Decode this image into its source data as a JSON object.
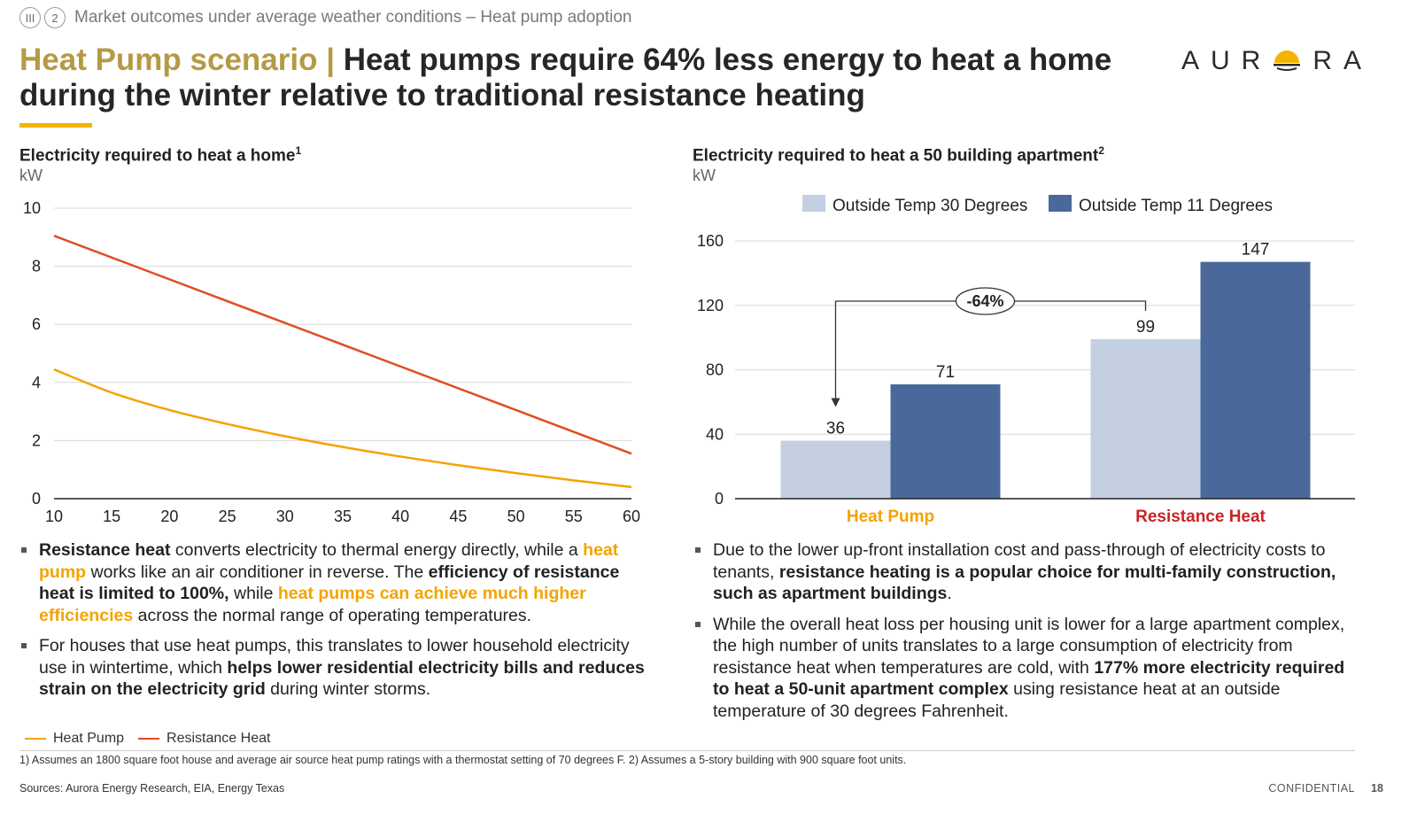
{
  "header": {
    "section_roman": "III",
    "section_number": "2",
    "breadcrumb": "Market outcomes under average weather conditions – Heat pump adoption",
    "title_accent": "Heat Pump scenario |",
    "title_main": "Heat pumps require 64% less energy to heat a home during the winter relative to traditional resistance heating",
    "logo_text_left": "AUR",
    "logo_text_right": "RA",
    "accent_color": "#b59a45",
    "underline_color": "#f4b400"
  },
  "left_panel": {
    "title": "Electricity required to heat a home",
    "title_sup": "1",
    "unit": "kW",
    "legend": [
      {
        "label": "Heat Pump",
        "color": "#f4a300"
      },
      {
        "label": "Resistance Heat",
        "color": "#e04e1f"
      }
    ],
    "bullets": [
      {
        "parts": [
          {
            "t": "Resistance heat",
            "s": "b"
          },
          {
            "t": " converts electricity to thermal energy directly, while a ",
            "s": ""
          },
          {
            "t": "heat pump",
            "s": "o"
          },
          {
            "t": " works like an air conditioner in reverse. The ",
            "s": ""
          },
          {
            "t": "efficiency of resistance heat is limited to 100%,",
            "s": "b"
          },
          {
            "t": " while ",
            "s": ""
          },
          {
            "t": "heat pumps can achieve much higher efficiencies",
            "s": "o"
          },
          {
            "t": " across the normal range of operating temperatures.",
            "s": ""
          }
        ]
      },
      {
        "parts": [
          {
            "t": "For houses that use heat pumps, this translates to lower household electricity use in wintertime, which ",
            "s": ""
          },
          {
            "t": "helps lower residential electricity bills and reduces strain on the electricity grid",
            "s": "b"
          },
          {
            "t": " during winter storms.",
            "s": ""
          }
        ]
      }
    ]
  },
  "right_panel": {
    "title": "Electricity required to heat a 50 building apartment",
    "title_sup": "2",
    "unit": "kW",
    "bullets": [
      {
        "parts": [
          {
            "t": "Due to the lower up-front installation cost and pass-through of electricity costs to tenants, ",
            "s": ""
          },
          {
            "t": "resistance heating is a popular choice for multi-family construction, such as apartment buildings",
            "s": "b"
          },
          {
            "t": ".",
            "s": ""
          }
        ]
      },
      {
        "parts": [
          {
            "t": "While the overall heat loss per housing unit is lower for a large apartment complex, the high number of units translates to a large consumption of electricity from resistance heat when temperatures are cold, with ",
            "s": ""
          },
          {
            "t": "177% more electricity required to heat a 50-unit apartment complex",
            "s": "b"
          },
          {
            "t": " using resistance heat at an outside temperature of 30 degrees Fahrenheit.",
            "s": ""
          }
        ]
      }
    ]
  },
  "chart_data": [
    {
      "type": "line",
      "title": "Electricity required to heat a home",
      "ylabel": "kW",
      "xlabel": "",
      "xlim": [
        10,
        60
      ],
      "ylim": [
        0,
        10
      ],
      "x_ticks": [
        10,
        15,
        20,
        25,
        30,
        35,
        40,
        45,
        50,
        55,
        60
      ],
      "y_ticks": [
        0,
        2,
        4,
        6,
        8,
        10
      ],
      "grid": true,
      "legend_position": "bottom-left",
      "series": [
        {
          "name": "Heat Pump",
          "color": "#f4a300",
          "x": [
            10,
            15,
            20,
            25,
            30,
            35,
            40,
            45,
            50,
            55,
            60
          ],
          "values": [
            4.45,
            3.65,
            3.05,
            2.57,
            2.15,
            1.78,
            1.45,
            1.15,
            0.88,
            0.63,
            0.4
          ]
        },
        {
          "name": "Resistance Heat",
          "color": "#e04e1f",
          "x": [
            10,
            20,
            30,
            40,
            50,
            60
          ],
          "values": [
            9.05,
            7.55,
            6.05,
            4.55,
            3.05,
            1.55
          ]
        }
      ]
    },
    {
      "type": "bar",
      "title": "Electricity required to heat a 50 building apartment",
      "ylabel": "kW",
      "ylim": [
        0,
        160
      ],
      "y_ticks": [
        0,
        40,
        80,
        120,
        160
      ],
      "grid": true,
      "legend_position": "top",
      "categories": [
        {
          "label": "Heat Pump",
          "color": "#f4a300"
        },
        {
          "label": "Resistance Heat",
          "color": "#cc2222"
        }
      ],
      "series": [
        {
          "name": "Outside Temp 30 Degrees",
          "color": "#c4cfe2",
          "values": [
            36,
            99
          ]
        },
        {
          "name": "Outside Temp 11 Degrees",
          "color": "#4a6899",
          "values": [
            71,
            147
          ]
        }
      ],
      "annotation": {
        "label": "-64%"
      }
    }
  ],
  "footer": {
    "footnote": "1) Assumes an 1800 square foot house and average air source heat pump ratings with a thermostat setting of 70 degrees F. 2) Assumes a 5-story building with 900 square foot units.",
    "sources": "Sources: Aurora Energy Research, EIA, Energy Texas",
    "confidential": "CONFIDENTIAL",
    "page_number": "18"
  }
}
